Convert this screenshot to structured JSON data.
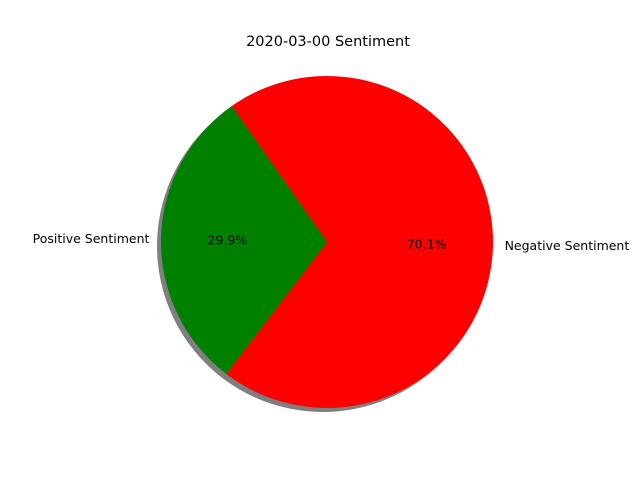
{
  "chart_data": {
    "type": "pie",
    "title": "2020-03-00 Sentiment",
    "slices": [
      {
        "label": "Positive Sentiment",
        "value": 29.9,
        "pct_label": "29.9%",
        "color": "#008000"
      },
      {
        "label": "Negative Sentiment",
        "value": 70.1,
        "pct_label": "70.1%",
        "color": "#ff0000"
      }
    ],
    "shadow": true,
    "legend": "none"
  }
}
